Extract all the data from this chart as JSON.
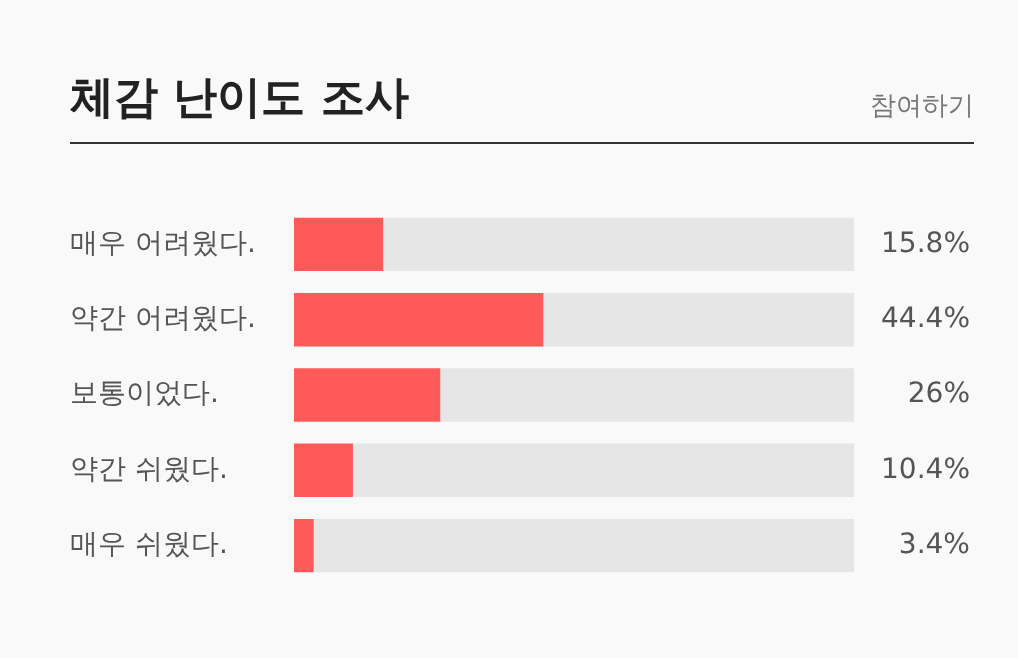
{
  "chart_data": {
    "type": "bar",
    "orientation": "horizontal",
    "title": "체감 난이도 조사",
    "annotations": [
      "참여하기"
    ],
    "categories": [
      "매우 어려웠다.",
      "약간 어려웠다.",
      "보통이었다.",
      "약간 쉬웠다.",
      "매우 쉬웠다."
    ],
    "series": [
      {
        "color": "#ff5a5a",
        "values": [
          15.8,
          44.4,
          26,
          10.4,
          3.4
        ],
        "value_labels": [
          "15.8%",
          "44.4%",
          "26%",
          "10.4%",
          "3.4%"
        ]
      },
      {
        "color": "#e6e6e6",
        "values": [
          84.2,
          55.6,
          74,
          89.6,
          96.6
        ]
      }
    ],
    "stacked": true,
    "xlim": [
      0,
      100
    ],
    "tick_labels": "y",
    "grid": false,
    "legend": false
  }
}
